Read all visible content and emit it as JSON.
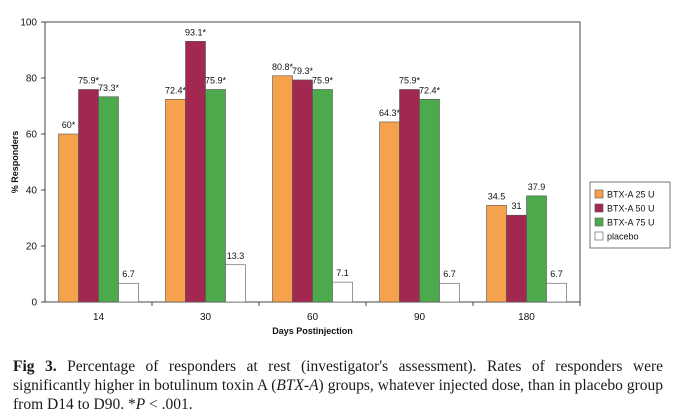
{
  "chart_data": {
    "type": "bar",
    "categories": [
      "14",
      "30",
      "60",
      "90",
      "180"
    ],
    "xlabel": "Days Postinjection",
    "ylabel": "% Responders",
    "ylim": [
      0,
      100
    ],
    "yticks": [
      0,
      20,
      40,
      60,
      80,
      100
    ],
    "grid": false,
    "legend_position": "right",
    "series": [
      {
        "name": "BTX-A 25 U",
        "color": "#f6a14c",
        "values": [
          60,
          72.4,
          80.8,
          64.3,
          34.5
        ],
        "labels": [
          "60*",
          "72.4*",
          "80.8*",
          "64.3*",
          "34.5"
        ]
      },
      {
        "name": "BTX-A 50 U",
        "color": "#a3284f",
        "values": [
          75.9,
          93.1,
          79.3,
          75.9,
          31
        ],
        "labels": [
          "75.9*",
          "93.1*",
          "79.3*",
          "75.9*",
          "31"
        ]
      },
      {
        "name": "BTX-A 75 U",
        "color": "#4caa4c",
        "values": [
          73.3,
          75.9,
          75.9,
          72.4,
          37.9
        ],
        "labels": [
          "73.3*",
          "75.9*",
          "75.9*",
          "72.4*",
          "37.9"
        ]
      },
      {
        "name": "placebo",
        "color": "#ffffff",
        "values": [
          6.7,
          13.3,
          7.1,
          6.7,
          6.7
        ],
        "labels": [
          "6.7",
          "13.3",
          "7.1",
          "6.7",
          "6.7"
        ]
      }
    ]
  },
  "caption": {
    "label": "Fig 3.",
    "text_1": "Percentage of responders at rest (investigator's assessment). Rates of responders were significantly higher in botulinum toxin A (",
    "abbrev": "BTX-A",
    "text_2": ") groups, whatever injected dose, than in placebo group from D14 to D90. *",
    "p_symbol": "P",
    "text_3": " < .001."
  }
}
